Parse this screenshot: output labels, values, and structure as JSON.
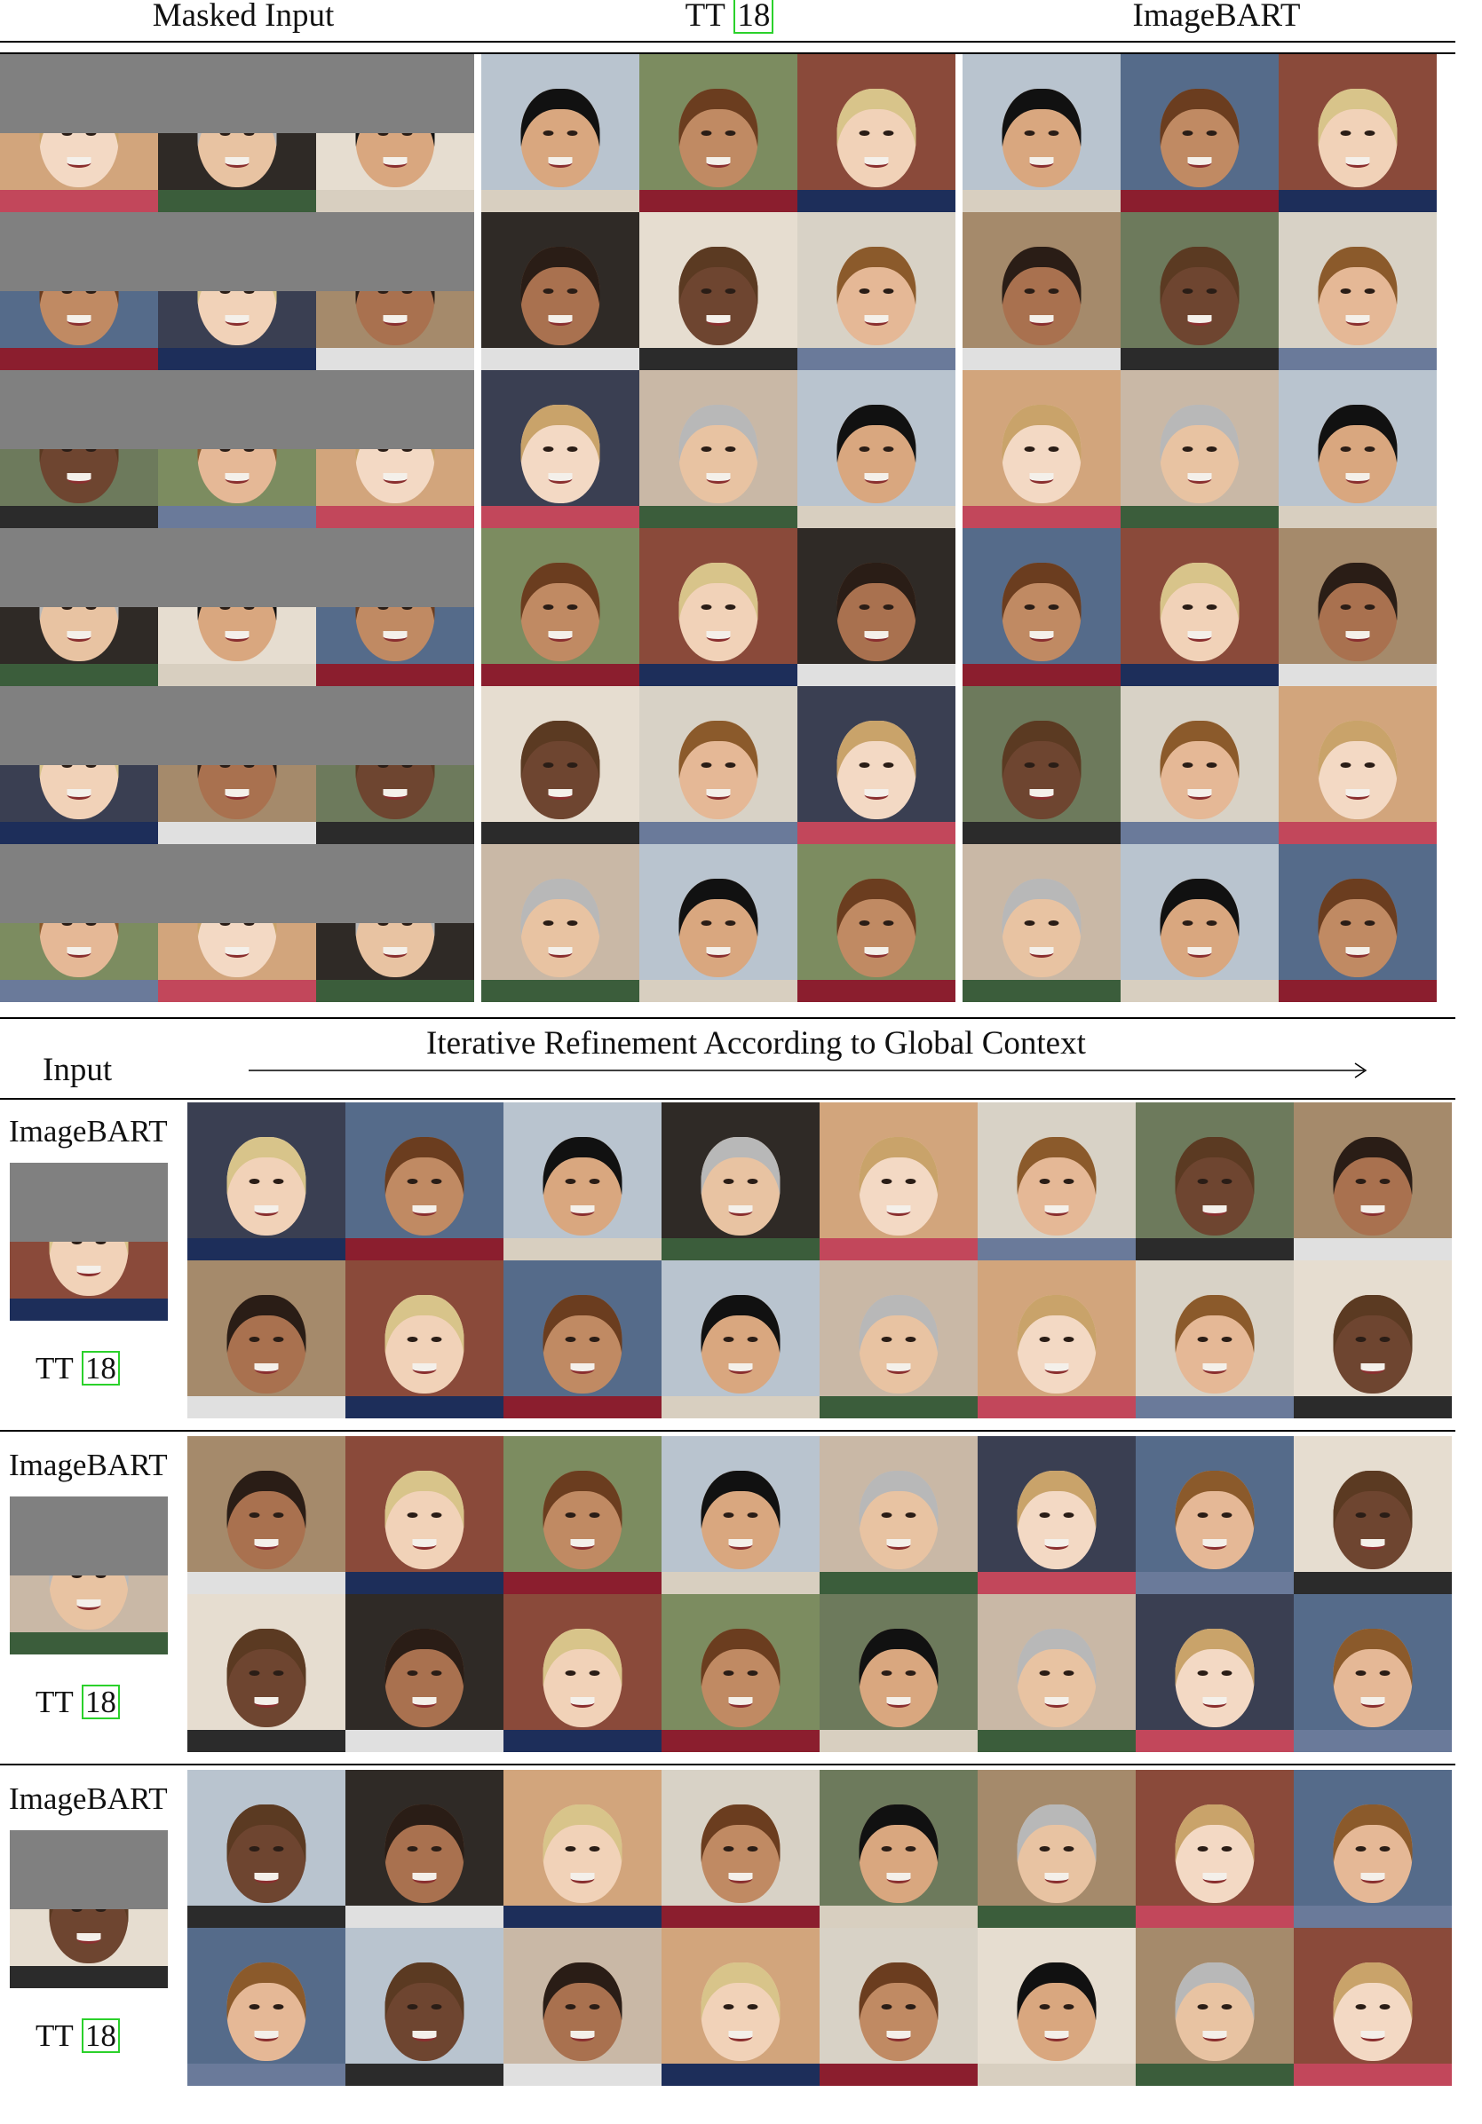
{
  "top_headers": {
    "masked_input": "Masked Input",
    "tt_prefix": "TT",
    "tt_cite": "18",
    "imagebart": "ImageBART"
  },
  "refinement": {
    "input_label": "Input",
    "title": "Iterative Refinement According to Global Context"
  },
  "groups": [
    {
      "imagebart_label": "ImageBART",
      "tt_prefix": "TT",
      "tt_cite": "18"
    },
    {
      "imagebart_label": "ImageBART",
      "tt_prefix": "TT",
      "tt_cite": "18"
    },
    {
      "imagebart_label": "ImageBART",
      "tt_prefix": "TT",
      "tt_cite": "18"
    }
  ],
  "colors": {
    "mask_gray": "#808080",
    "citation_box": "#2bd12b",
    "rule": "#000000"
  }
}
